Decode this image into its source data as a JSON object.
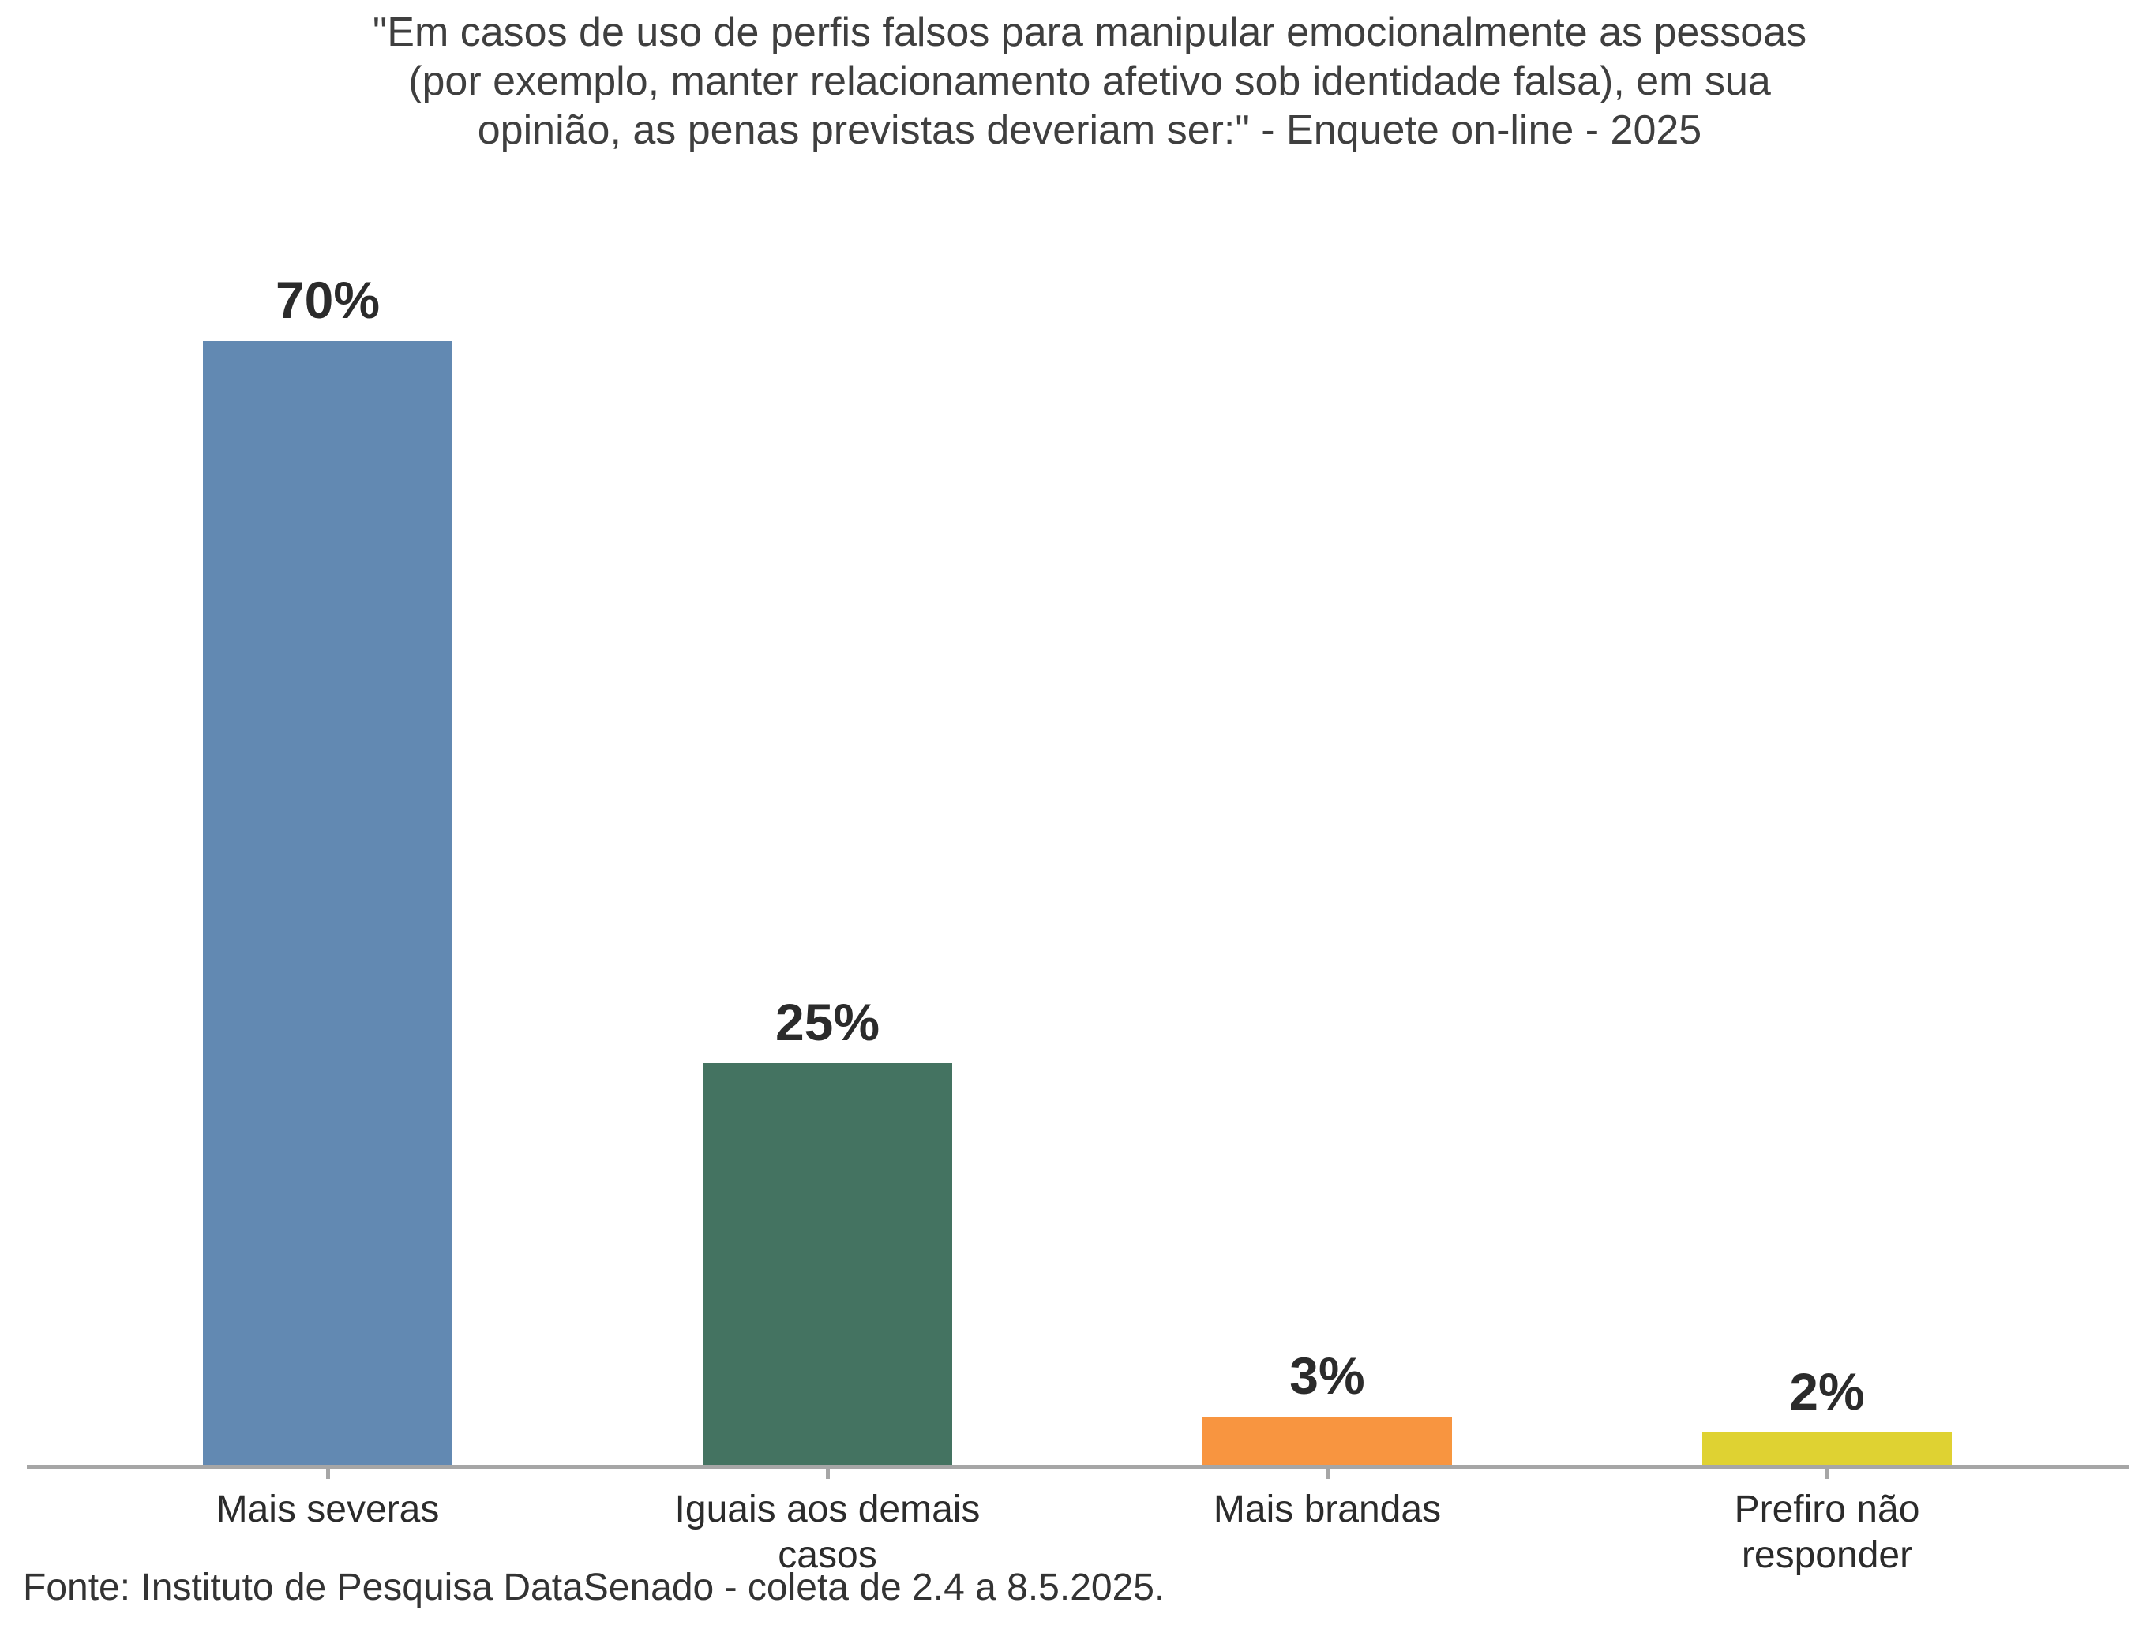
{
  "chart_data": {
    "type": "bar",
    "title": "\"Em casos de uso de perfis falsos para manipular emocionalmente as pessoas (por exemplo, manter relacionamento afetivo sob identidade falsa), em sua opinião, as penas previstas deveriam ser:\" - Enquete on-line - 2025",
    "title_lines": [
      "\"Em casos de uso de perfis falsos para manipular emocionalmente as pessoas",
      "(por exemplo, manter relacionamento afetivo sob identidade falsa), em sua",
      "opinião, as penas previstas deveriam ser:\" - Enquete on-line - 2025"
    ],
    "categories": [
      "Mais severas",
      "Iguais aos demais casos",
      "Mais brandas",
      "Prefiro não responder"
    ],
    "category_lines": [
      [
        "Mais severas"
      ],
      [
        "Iguais aos demais",
        "casos"
      ],
      [
        "Mais brandas"
      ],
      [
        "Prefiro não",
        "responder"
      ]
    ],
    "values": [
      70,
      25,
      3,
      2
    ],
    "value_labels": [
      "70%",
      "25%",
      "3%",
      "2%"
    ],
    "bar_colors": [
      "#6289B2",
      "#447361",
      "#F89540",
      "#DFD232"
    ],
    "bar_names": [
      "mais-severas",
      "iguais-aos-demais-casos",
      "mais-brandas",
      "prefiro-nao-responder"
    ],
    "xlabel": "",
    "ylabel": "",
    "ylim": [
      0,
      70
    ],
    "grid": false,
    "legend_position": "none",
    "data_labels_shown": true,
    "source": "Fonte: Instituto de Pesquisa DataSenado - coleta de 2.4 a 8.5.2025."
  },
  "colors": {
    "background": "#FFFFFF",
    "axis_line": "#A6A6A6",
    "tick": "#A6A6A6",
    "title_text": "#3F3F3F",
    "label_text": "#2B2B2B",
    "source_text": "#333333"
  }
}
